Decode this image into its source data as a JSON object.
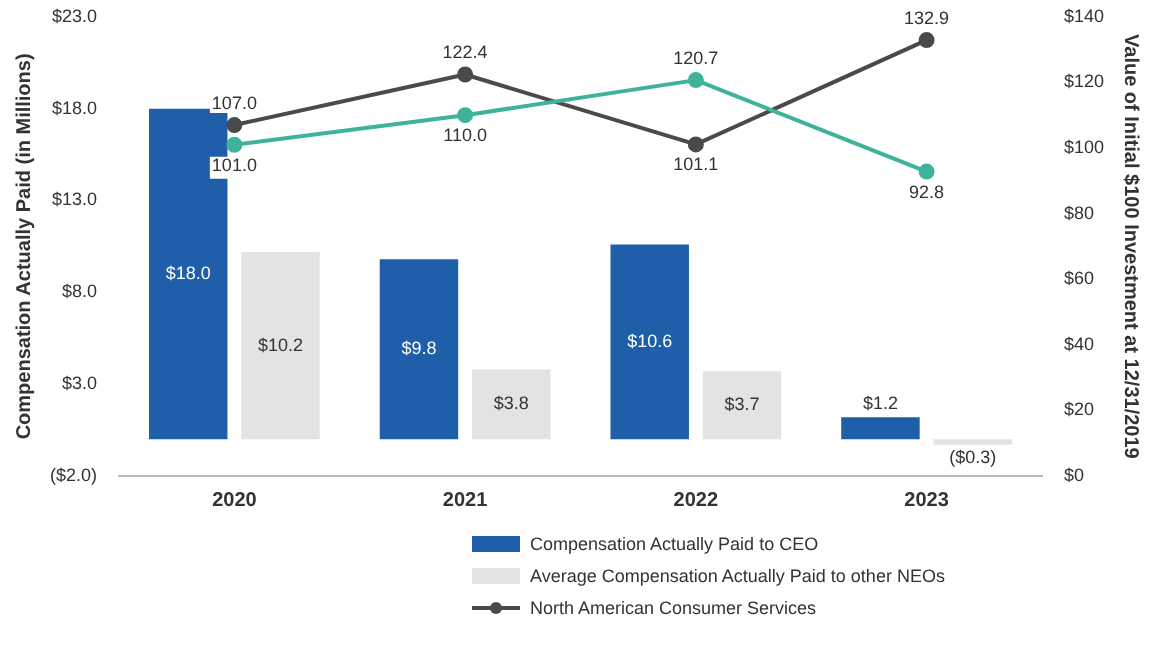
{
  "chart_data": {
    "type": "bar",
    "ylabel": "Compensation Actually Paid (in Millions)",
    "y2label": "Value of Initial $100 Investment at 12/31/2019",
    "categories": [
      "2020",
      "2021",
      "2022",
      "2023"
    ],
    "series": [
      {
        "name": "Compensation Actually Paid to CEO",
        "color": "#1f5ea8",
        "values": [
          18.0,
          9.8,
          10.6,
          1.2
        ],
        "value_labels": [
          "$18.0",
          "$9.8",
          "$10.6",
          "$1.2"
        ]
      },
      {
        "name": "Average Compensation Actually Paid to other NEOs",
        "color": "#e3e3e3",
        "values": [
          10.2,
          3.8,
          3.7,
          -0.3
        ],
        "value_labels": [
          "$10.2",
          "$3.8",
          "$3.7",
          "($0.3)"
        ]
      },
      {
        "type": "line",
        "axis": "y2",
        "color": "#3fb39a",
        "values": [
          101.0,
          110.0,
          120.7,
          92.8
        ],
        "value_labels": [
          "101.0",
          "110.0",
          "120.7",
          "92.8"
        ]
      },
      {
        "name": "North American Consumer Services",
        "type": "line",
        "axis": "y2",
        "color": "#4a4a4a",
        "values": [
          107.0,
          122.4,
          101.1,
          132.9
        ],
        "value_labels": [
          "107.0",
          "122.4",
          "101.1",
          "132.9"
        ]
      }
    ],
    "ylim": [
      -2,
      23
    ],
    "yticks": [
      {
        "value": -2,
        "label": "($2.0)"
      },
      {
        "value": 3,
        "label": "$3.0"
      },
      {
        "value": 8,
        "label": "$8.0"
      },
      {
        "value": 13,
        "label": "$13.0"
      },
      {
        "value": 18,
        "label": "$18.0"
      },
      {
        "value": 23,
        "label": "$23.0"
      }
    ],
    "y2lim": [
      0,
      140
    ],
    "y2ticks": [
      {
        "value": 0,
        "label": "$0"
      },
      {
        "value": 20,
        "label": "$20"
      },
      {
        "value": 40,
        "label": "$40"
      },
      {
        "value": 60,
        "label": "$60"
      },
      {
        "value": 80,
        "label": "$80"
      },
      {
        "value": 100,
        "label": "$100"
      },
      {
        "value": 120,
        "label": "$120"
      },
      {
        "value": 140,
        "label": "$140"
      }
    ],
    "grid": false,
    "legend": "bottom",
    "marker": "circle",
    "line_style": "solid"
  }
}
